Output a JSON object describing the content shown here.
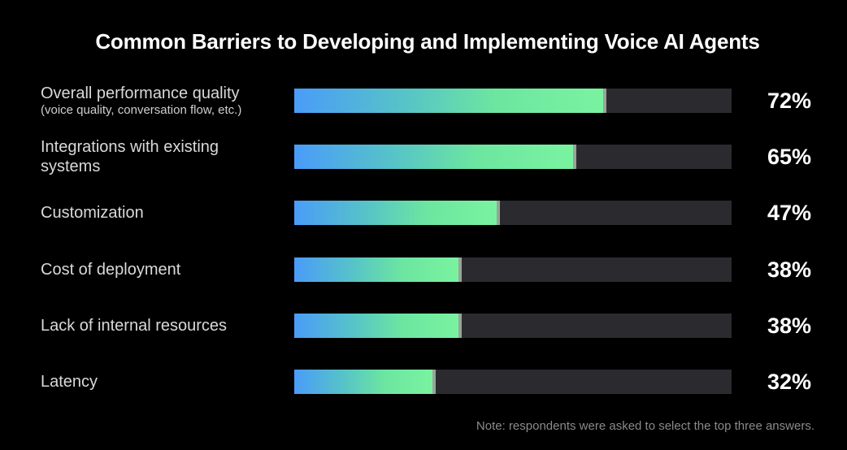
{
  "title": "Common Barriers to Developing and Implementing Voice AI Agents",
  "note": "Note: respondents were asked to select the top three answers.",
  "colors": {
    "background": "#000000",
    "track": "#2b2b2f",
    "gradient_start": "#4a9cf8",
    "gradient_end": "#7af3a0"
  },
  "chart_data": {
    "type": "bar",
    "orientation": "horizontal",
    "title": "Common Barriers to Developing and Implementing Voice AI Agents",
    "xlim": [
      0,
      100
    ],
    "grid": false,
    "legend": "none",
    "categories": [
      "Overall performance quality",
      "Integrations with existing systems",
      "Customization",
      "Cost of deployment",
      "Lack of internal resources",
      "Latency"
    ],
    "sublabels": [
      "(voice quality, conversation flow, etc.)",
      "",
      "",
      "",
      "",
      ""
    ],
    "values": [
      72,
      65,
      47,
      38,
      38,
      32
    ],
    "value_labels": [
      "72%",
      "65%",
      "47%",
      "38%",
      "38%",
      "32%"
    ]
  }
}
